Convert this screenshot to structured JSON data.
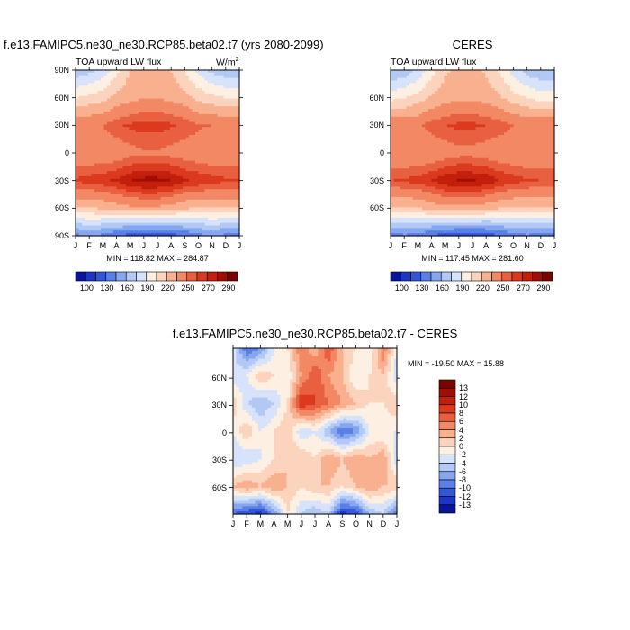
{
  "palette": [
    "#08149a",
    "#1b35c4",
    "#3158d8",
    "#5a7fe6",
    "#86a6ef",
    "#b2c8f5",
    "#d7e3fa",
    "#fdf0e3",
    "#fcd4bd",
    "#f9b08f",
    "#f38864",
    "#e8603f",
    "#db3a1e",
    "#c41f0a",
    "#a10d02",
    "#7a0500"
  ],
  "panels": {
    "model": {
      "title": "f.e13.FAMIPC5.ne30_ne30.RCP85.beta02.t7 (yrs 2080-2099)",
      "subtitle": "TOA upward LW flux",
      "units_text": "W/m",
      "units_sup": "2",
      "minmax": "MIN = 118.82 MAX = 284.87"
    },
    "ceres": {
      "title": "CERES",
      "subtitle": "TOA upward LW flux",
      "minmax": "MIN = 117.45 MAX = 281.60"
    },
    "diff": {
      "title": "f.e13.FAMIPC5.ne30_ne30.RCP85.beta02.t7 - CERES",
      "minmax": "MIN = -19.50 MAX =  15.88"
    }
  },
  "colorbar_labels": [
    "100",
    "130",
    "160",
    "190",
    "220",
    "250",
    "270",
    "290"
  ],
  "diff_colorbar_labels": [
    "13",
    "12",
    "10",
    "8",
    "6",
    "4",
    "2",
    "0",
    "-2",
    "-4",
    "-6",
    "-8",
    "-10",
    "-12",
    "-13"
  ],
  "month_ticks": [
    "J",
    "F",
    "M",
    "A",
    "M",
    "J",
    "J",
    "A",
    "S",
    "O",
    "N",
    "D",
    "J"
  ],
  "lat_ticks_model": [
    "90N",
    "60N",
    "30N",
    "0",
    "30S",
    "60S",
    "90S"
  ],
  "lat_ticks_ceres": [
    "60N",
    "30N",
    "0",
    "30S",
    "60S"
  ],
  "lat_ticks_diff": [
    "60N",
    "30N",
    "0",
    "30S",
    "60S"
  ],
  "chart_data": [
    {
      "type": "heatmap",
      "title": "f.e13.FAMIPC5.ne30_ne30.RCP85.beta02.t7 (yrs 2080-2099)",
      "subtitle": "TOA upward LW flux",
      "units": "W/m2",
      "x": [
        "J",
        "F",
        "M",
        "A",
        "M",
        "J",
        "J",
        "A",
        "S",
        "O",
        "N",
        "D",
        "J"
      ],
      "y": [
        "90N",
        "60N",
        "30N",
        "0",
        "30S",
        "60S",
        "90S"
      ],
      "values": [
        [
          165,
          170,
          180,
          200,
          220,
          225,
          225,
          220,
          205,
          185,
          170,
          165,
          165
        ],
        [
          205,
          210,
          215,
          225,
          230,
          235,
          235,
          230,
          225,
          215,
          210,
          205,
          205
        ],
        [
          250,
          248,
          250,
          258,
          262,
          265,
          265,
          262,
          258,
          252,
          250,
          250,
          250
        ],
        [
          240,
          238,
          238,
          240,
          245,
          248,
          248,
          245,
          242,
          240,
          238,
          240,
          240
        ],
        [
          262,
          265,
          268,
          272,
          280,
          284,
          284,
          280,
          272,
          268,
          265,
          262,
          262
        ],
        [
          220,
          220,
          222,
          228,
          232,
          232,
          232,
          228,
          222,
          220,
          220,
          220,
          220
        ],
        [
          140,
          145,
          140,
          130,
          122,
          120,
          120,
          122,
          130,
          140,
          145,
          140,
          140
        ]
      ],
      "zlabels": [
        "100",
        "130",
        "160",
        "190",
        "220",
        "250",
        "270",
        "290"
      ],
      "min": 118.82,
      "max": 284.87
    },
    {
      "type": "heatmap",
      "title": "CERES",
      "subtitle": "TOA upward LW flux",
      "x": [
        "J",
        "F",
        "M",
        "A",
        "M",
        "J",
        "J",
        "A",
        "S",
        "O",
        "N",
        "D",
        "J"
      ],
      "y": [
        "90N",
        "60N",
        "30N",
        "0",
        "30S",
        "60S",
        "90S"
      ],
      "values": [
        [
          160,
          165,
          178,
          198,
          218,
          222,
          222,
          218,
          202,
          182,
          168,
          160,
          160
        ],
        [
          200,
          205,
          212,
          222,
          228,
          232,
          232,
          228,
          222,
          212,
          205,
          200,
          200
        ],
        [
          248,
          246,
          248,
          256,
          260,
          263,
          263,
          260,
          256,
          250,
          248,
          248,
          248
        ],
        [
          238,
          236,
          236,
          238,
          242,
          245,
          245,
          242,
          240,
          238,
          236,
          238,
          238
        ],
        [
          260,
          262,
          265,
          270,
          278,
          281,
          281,
          278,
          270,
          265,
          262,
          260,
          260
        ],
        [
          218,
          218,
          220,
          226,
          230,
          230,
          230,
          226,
          220,
          218,
          218,
          218,
          218
        ],
        [
          138,
          142,
          138,
          128,
          120,
          118,
          118,
          120,
          128,
          138,
          142,
          138,
          138
        ]
      ],
      "zlabels": [
        "100",
        "130",
        "160",
        "190",
        "220",
        "250",
        "270",
        "290"
      ],
      "min": 117.45,
      "max": 281.6
    },
    {
      "type": "heatmap",
      "title": "f.e13.FAMIPC5.ne30_ne30.RCP85.beta02.t7 - CERES",
      "x": [
        "J",
        "F",
        "M",
        "A",
        "M",
        "J",
        "J",
        "A",
        "S",
        "O",
        "N",
        "D",
        "J"
      ],
      "y": [
        "90N",
        "60N",
        "30N",
        "0",
        "30S",
        "60S",
        "90S"
      ],
      "values": [
        [
          -2,
          -10,
          -8,
          -2,
          0,
          6,
          2,
          8,
          2,
          0,
          -2,
          6,
          -2
        ],
        [
          -4,
          -2,
          2,
          0,
          -2,
          4,
          8,
          4,
          2,
          -2,
          0,
          2,
          -4
        ],
        [
          2,
          -4,
          -6,
          -4,
          0,
          10,
          8,
          6,
          4,
          2,
          0,
          0,
          2
        ],
        [
          -2,
          2,
          -2,
          0,
          2,
          -4,
          -2,
          -6,
          -10,
          -8,
          -2,
          -2,
          -2
        ],
        [
          -4,
          -4,
          -2,
          0,
          2,
          2,
          0,
          4,
          2,
          4,
          2,
          4,
          -4
        ],
        [
          2,
          4,
          2,
          4,
          2,
          0,
          2,
          2,
          0,
          2,
          4,
          2,
          2
        ],
        [
          -10,
          -12,
          -13,
          -8,
          0,
          -4,
          -6,
          -4,
          -13,
          -12,
          -6,
          -4,
          -10
        ]
      ],
      "zlabels": [
        "13",
        "12",
        "10",
        "8",
        "6",
        "4",
        "2",
        "0",
        "-2",
        "-4",
        "-6",
        "-8",
        "-10",
        "-12",
        "-13"
      ],
      "min": -19.5,
      "max": 15.88
    }
  ]
}
